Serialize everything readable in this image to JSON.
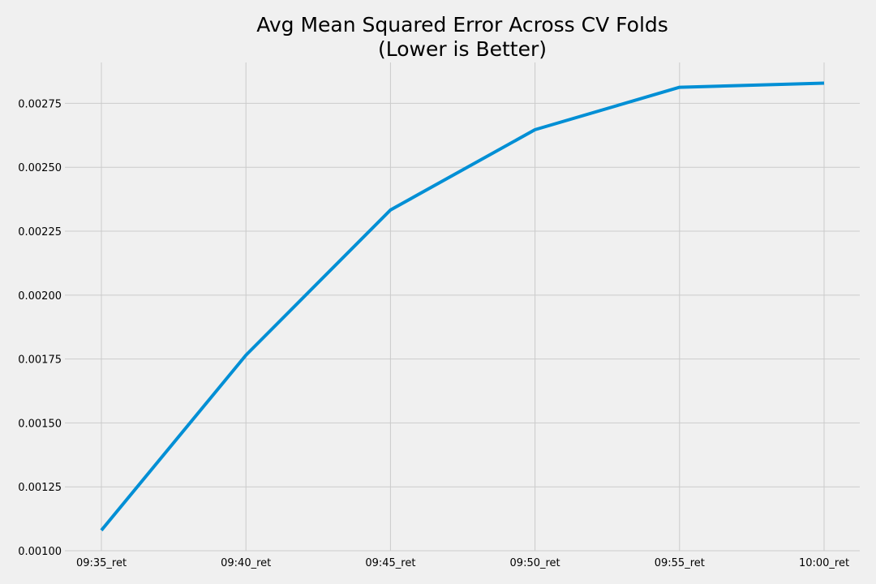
{
  "chart_data": {
    "type": "line",
    "title_lines": [
      "Avg Mean Squared Error Across CV Folds",
      "(Lower is Better)"
    ],
    "xlabel": "",
    "ylabel": "",
    "categories": [
      "09:35_ret",
      "09:40_ret",
      "09:45_ret",
      "09:50_ret",
      "09:55_ret",
      "10:00_ret"
    ],
    "series": [
      {
        "values": [
          0.00108,
          0.001765,
          0.002333,
          0.002647,
          0.002813,
          0.002829
        ],
        "color": "#008fd5"
      }
    ],
    "ylim": [
      0.001,
      0.00291
    ],
    "yticks": [
      0.001,
      0.00125,
      0.0015,
      0.00175,
      0.002,
      0.00225,
      0.0025,
      0.00275
    ],
    "ytick_labels": [
      "0.00100",
      "0.00125",
      "0.00150",
      "0.00175",
      "0.00200",
      "0.00225",
      "0.00250",
      "0.00275"
    ],
    "grid": true,
    "legend": "none",
    "background": "#f0f0f0"
  }
}
